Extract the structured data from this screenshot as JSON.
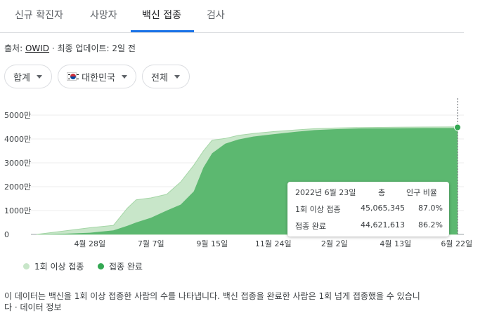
{
  "tabs": [
    "신규 확진자",
    "사망자",
    "백신 접종",
    "검사"
  ],
  "source": {
    "prefix": "출처: ",
    "link": "OWID",
    "suffix": " · 최종 업데이트: 2일 전"
  },
  "filters": {
    "aggregate": "합계",
    "country": "대한민국",
    "population": "전체"
  },
  "chart_data": {
    "type": "area",
    "y_ticks": [
      "5000만",
      "4000만",
      "3000만",
      "2000만",
      "1000만",
      "0"
    ],
    "x_ticks": [
      "4월 28일",
      "7월 7일",
      "9월 15일",
      "11월 24일",
      "2월 2일",
      "4월 13일",
      "6월 22일"
    ],
    "ylim": [
      0,
      50000000
    ],
    "x": [
      "2021-02-26",
      "2021-03-31",
      "2021-04-28",
      "2021-05-25",
      "2021-06-10",
      "2021-06-20",
      "2021-07-07",
      "2021-07-25",
      "2021-08-10",
      "2021-08-25",
      "2021-09-05",
      "2021-09-15",
      "2021-09-30",
      "2021-10-15",
      "2021-11-01",
      "2021-11-24",
      "2021-12-20",
      "2022-01-10",
      "2022-02-02",
      "2022-03-05",
      "2022-04-13",
      "2022-05-15",
      "2022-06-23"
    ],
    "series": [
      {
        "name": "1회 이상 접종",
        "color": "#c8e6c9",
        "values": [
          0,
          1500000,
          2800000,
          3800000,
          11000000,
          14500000,
          15300000,
          16800000,
          22000000,
          29000000,
          35000000,
          39500000,
          40200000,
          41500000,
          42300000,
          43100000,
          43800000,
          44300000,
          44600000,
          44800000,
          44900000,
          45000000,
          45065345
        ]
      },
      {
        "name": "접종 완료",
        "color": "#5cb870",
        "values": [
          0,
          300000,
          700000,
          1700000,
          3600000,
          5000000,
          7000000,
          10000000,
          12500000,
          18000000,
          28000000,
          34000000,
          38000000,
          39800000,
          41000000,
          42000000,
          43000000,
          43700000,
          44100000,
          44400000,
          44500000,
          44600000,
          44621613
        ]
      }
    ]
  },
  "tooltip": {
    "date": "2022년 6월 23일",
    "col_total": "총",
    "col_ratio": "인구 비율",
    "rows": [
      {
        "label": "1회 이상 접종",
        "total": "45,065,345",
        "ratio": "87.0%"
      },
      {
        "label": "접종 완료",
        "total": "44,621,613",
        "ratio": "86.2%"
      }
    ]
  },
  "legend": [
    "1회 이상 접종",
    "접종 완료"
  ],
  "description": "이 데이터는 백신을 1회 이상 접종한 사람의 수를 나타냅니다. 백신 접종을 완료한 사람은 1회 넘게 접종했을 수 있습니",
  "description_more": "다 · 데이터 정보"
}
